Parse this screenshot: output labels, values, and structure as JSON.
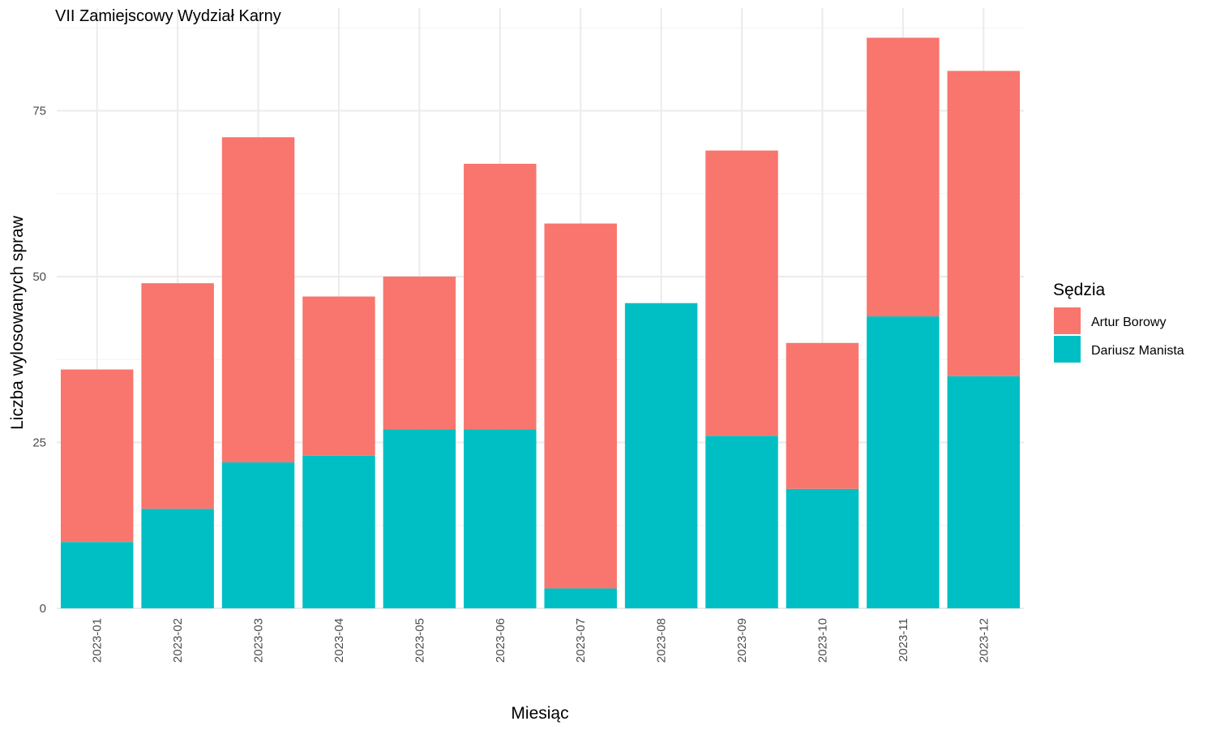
{
  "chart_data": {
    "type": "bar",
    "stacked": true,
    "title": "VII Zamiejscowy Wydział Karny",
    "xlabel": "Miesiąc",
    "ylabel": "Liczba wylosowanych spraw",
    "categories": [
      "2023-01",
      "2023-02",
      "2023-03",
      "2023-04",
      "2023-05",
      "2023-06",
      "2023-07",
      "2023-08",
      "2023-09",
      "2023-10",
      "2023-11",
      "2023-12"
    ],
    "series": [
      {
        "name": "Dariusz Manista",
        "color": "#00BFC4",
        "values": [
          10,
          15,
          22,
          23,
          27,
          27,
          3,
          46,
          26,
          18,
          44,
          35
        ]
      },
      {
        "name": "Artur Borowy",
        "color": "#F8766D",
        "values": [
          26,
          34,
          49,
          24,
          23,
          40,
          55,
          0,
          43,
          22,
          42,
          46
        ]
      }
    ],
    "ylim": [
      0,
      89
    ],
    "yticks": [
      0,
      25,
      50,
      75
    ],
    "grid": true,
    "legend": {
      "title": "Sędzia",
      "position": "right",
      "order": [
        "Artur Borowy",
        "Dariusz Manista"
      ]
    }
  }
}
